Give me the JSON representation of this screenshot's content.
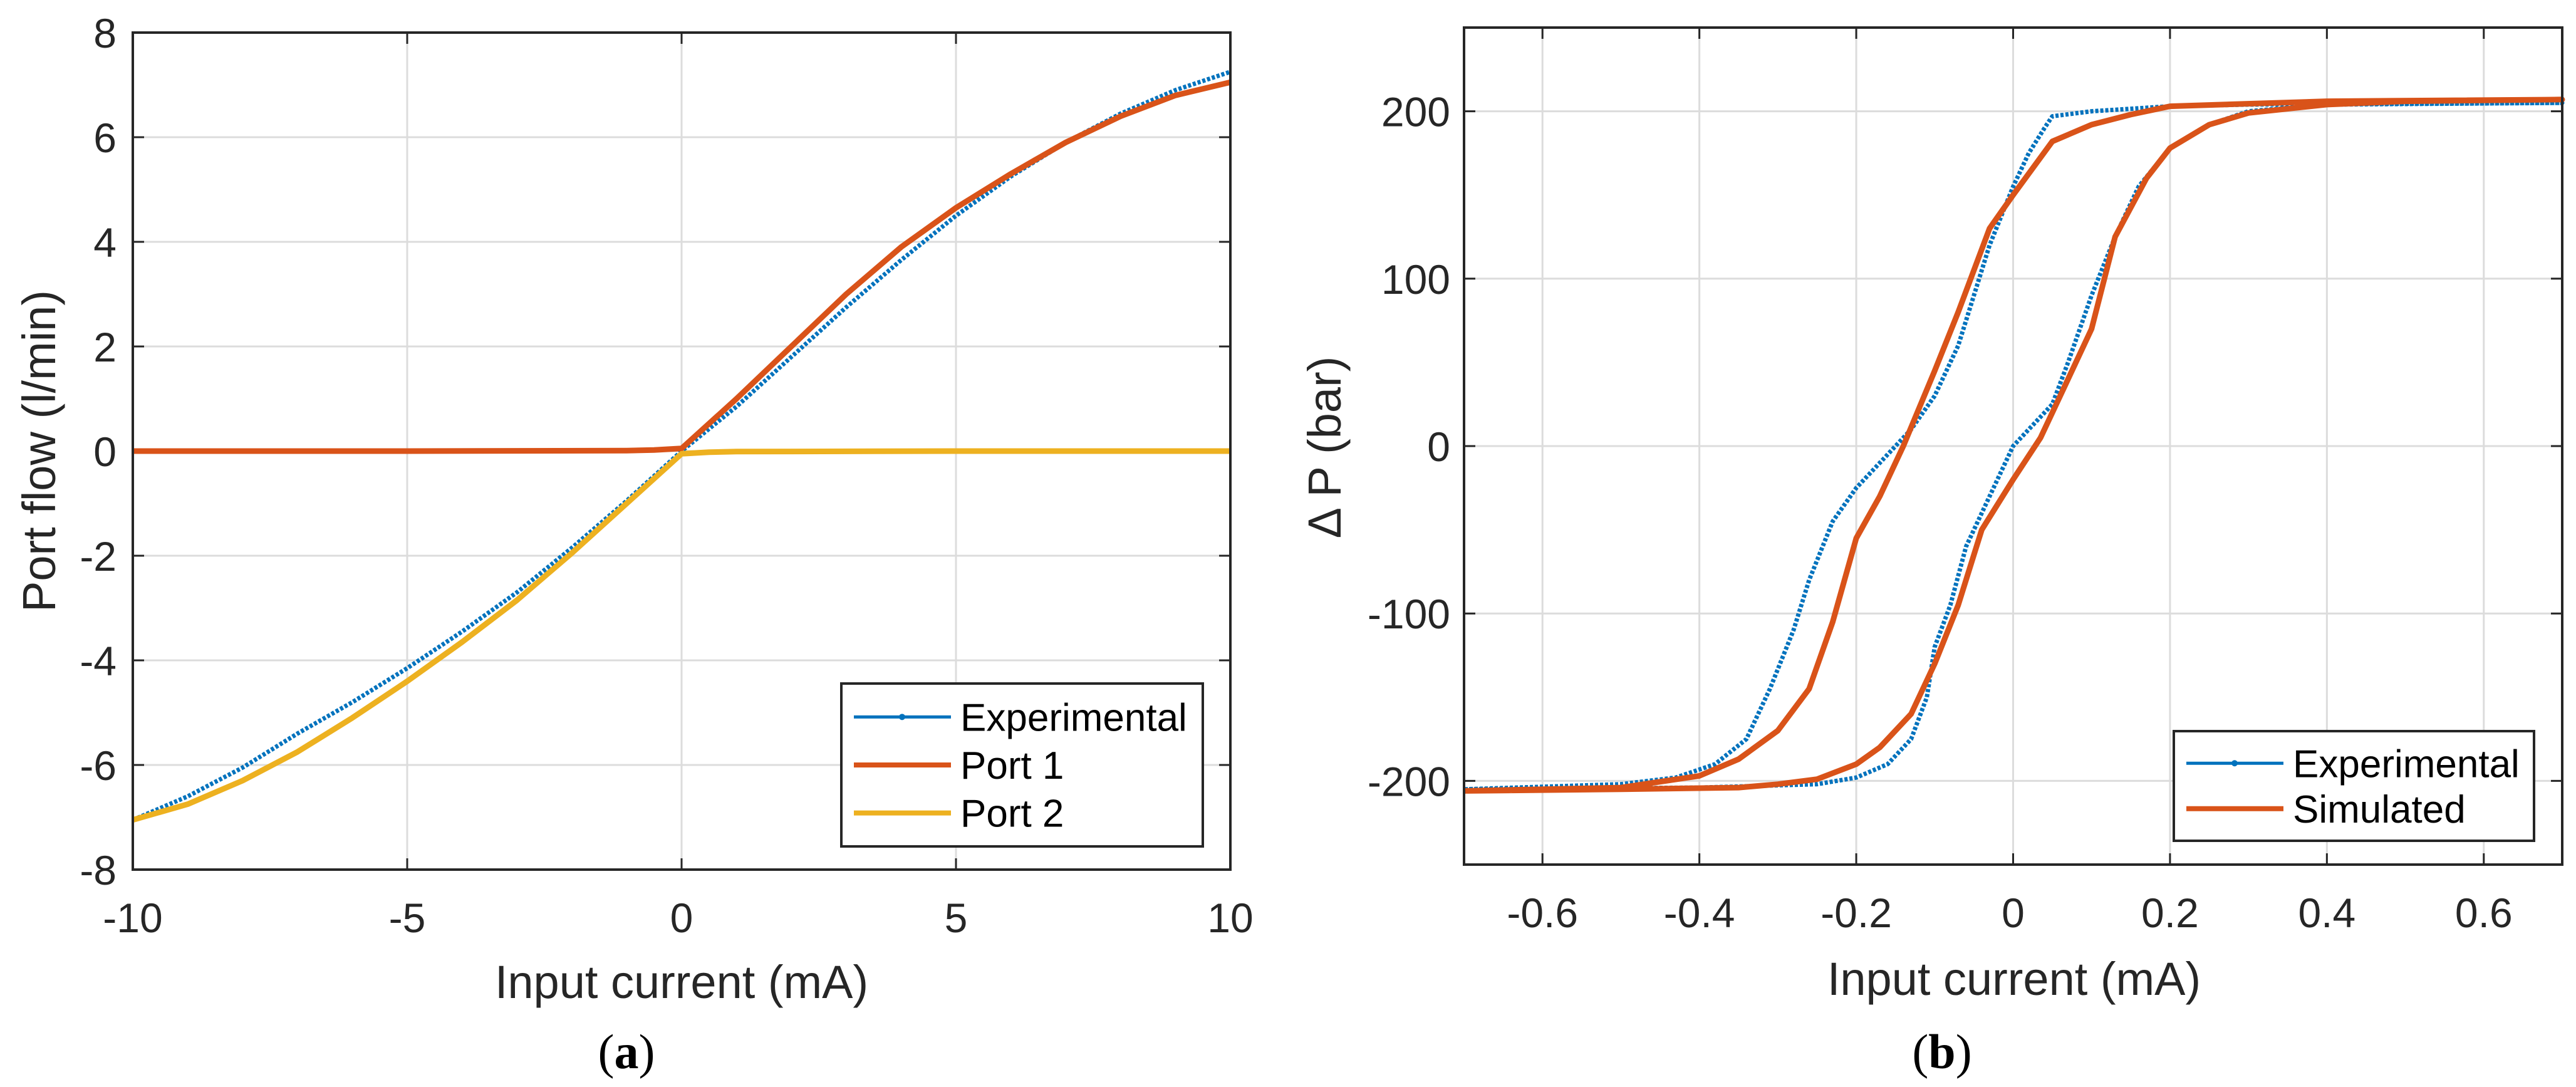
{
  "colors": {
    "experimental": "#0072BD",
    "port1": "#D95319",
    "port2": "#EDB120",
    "simulated": "#D95319",
    "grid": "#DCDCDC",
    "axis": "#262626"
  },
  "chart_data": [
    {
      "type": "line",
      "caption_letter": "a",
      "xlabel": "Input current (mA)",
      "ylabel": "Port flow (l/min)",
      "xlim": [
        -10,
        10
      ],
      "ylim": [
        -8,
        8
      ],
      "xticks": [
        -10,
        -5,
        0,
        5,
        10
      ],
      "yticks": [
        -8,
        -6,
        -4,
        -2,
        0,
        2,
        4,
        6,
        8
      ],
      "grid": true,
      "legend_placement": "bottom-right",
      "series": [
        {
          "name": "Experimental",
          "color_key": "experimental",
          "marker": "dot",
          "x": [
            -10,
            -9,
            -8,
            -7,
            -6,
            -5,
            -4,
            -3,
            -2,
            -1,
            0,
            1,
            2,
            3,
            4,
            5,
            6,
            7,
            8,
            9,
            10
          ],
          "y": [
            -7.05,
            -6.6,
            -6.05,
            -5.4,
            -4.8,
            -4.15,
            -3.45,
            -2.7,
            -1.85,
            -0.95,
            0,
            0.85,
            1.8,
            2.75,
            3.65,
            4.5,
            5.25,
            5.9,
            6.45,
            6.9,
            7.25
          ]
        },
        {
          "name": "Port 1",
          "color_key": "port1",
          "x": [
            -10,
            -5,
            -1,
            -0.5,
            0,
            1,
            2,
            3,
            4,
            5,
            6,
            7,
            8,
            9,
            10
          ],
          "y": [
            0,
            0,
            0.01,
            0.02,
            0.05,
            1.0,
            2.0,
            3.0,
            3.9,
            4.65,
            5.3,
            5.9,
            6.4,
            6.8,
            7.05
          ]
        },
        {
          "name": "Port 2",
          "color_key": "port2",
          "x": [
            -10,
            -9,
            -8,
            -7,
            -6,
            -5,
            -4,
            -3,
            -2,
            -1,
            0,
            0.5,
            1,
            5,
            10
          ],
          "y": [
            -7.05,
            -6.75,
            -6.3,
            -5.75,
            -5.1,
            -4.4,
            -3.65,
            -2.85,
            -1.95,
            -1.0,
            -0.05,
            -0.02,
            -0.01,
            0,
            0
          ]
        }
      ]
    },
    {
      "type": "line",
      "caption_letter": "b",
      "xlabel": "Input current (mA)",
      "ylabel": "Δ P (bar)",
      "xlim": [
        -0.7,
        0.7
      ],
      "ylim": [
        -250,
        250
      ],
      "xticks": [
        -0.6,
        -0.4,
        -0.2,
        0,
        0.2,
        0.4,
        0.6
      ],
      "yticks": [
        -200,
        -100,
        0,
        100,
        200
      ],
      "grid": true,
      "legend_placement": "bottom-right",
      "series": [
        {
          "name": "Experimental",
          "color_key": "experimental",
          "marker": "dot",
          "x": [
            -0.7,
            -0.4,
            -0.25,
            -0.2,
            -0.16,
            -0.13,
            -0.11,
            -0.1,
            -0.08,
            -0.06,
            -0.03,
            0,
            0.03,
            0.05,
            0.07,
            0.1,
            0.13,
            0.16,
            0.2,
            0.25,
            0.3,
            0.4,
            0.7,
            0.3,
            0.2,
            0.1,
            0.05,
            0.04,
            0.02,
            0,
            -0.03,
            -0.05,
            -0.07,
            -0.1,
            -0.13,
            -0.16,
            -0.2,
            -0.23,
            -0.26,
            -0.28,
            -0.31,
            -0.34,
            -0.38,
            -0.43,
            -0.5,
            -0.7
          ],
          "y": [
            -205,
            -204,
            -202,
            -198,
            -190,
            -175,
            -150,
            -120,
            -95,
            -60,
            -30,
            0,
            15,
            25,
            50,
            90,
            125,
            155,
            178,
            192,
            200,
            204,
            205,
            204,
            203,
            200,
            197,
            190,
            175,
            155,
            120,
            90,
            60,
            30,
            10,
            -5,
            -25,
            -45,
            -80,
            -110,
            -145,
            -175,
            -190,
            -198,
            -202,
            -205
          ]
        },
        {
          "name": "Simulated",
          "color_key": "simulated",
          "x": [
            -0.7,
            -0.5,
            -0.35,
            -0.3,
            -0.25,
            -0.2,
            -0.17,
            -0.13,
            -0.1,
            -0.07,
            -0.04,
            0,
            0.035,
            0.07,
            0.1,
            0.13,
            0.17,
            0.2,
            0.25,
            0.3,
            0.4,
            0.5,
            0.7,
            0.4,
            0.2,
            0.15,
            0.1,
            0.05,
            0,
            -0.03,
            -0.07,
            -0.1,
            -0.14,
            -0.17,
            -0.2,
            -0.23,
            -0.26,
            -0.3,
            -0.35,
            -0.4,
            -0.5,
            -0.7
          ],
          "y": [
            -206,
            -205,
            -204,
            -202,
            -199,
            -190,
            -180,
            -160,
            -130,
            -95,
            -50,
            -20,
            5,
            40,
            70,
            125,
            160,
            178,
            192,
            199,
            204,
            206,
            207,
            206,
            203,
            198,
            192,
            182,
            150,
            130,
            80,
            45,
            0,
            -30,
            -55,
            -105,
            -145,
            -170,
            -187,
            -197,
            -204,
            -206
          ]
        }
      ]
    }
  ]
}
